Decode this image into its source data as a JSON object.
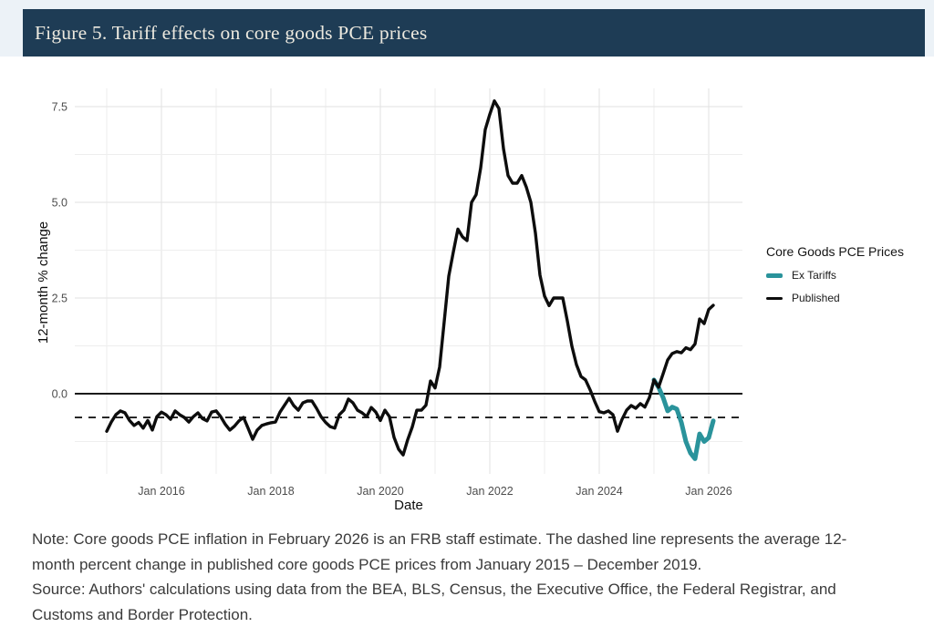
{
  "header": {
    "title": "Figure 5. Tariff effects on core goods PCE prices",
    "background_color": "#1e3c55",
    "text_color": "#ece9df"
  },
  "chart_data": {
    "type": "line",
    "xlabel": "Date",
    "ylabel": "12-month % change",
    "x_range": [
      "Jan 2015",
      "Feb 2026"
    ],
    "ylim": [
      -2.1,
      8.0
    ],
    "grid": true,
    "x_ticks": [
      {
        "label": "Jan 2016",
        "month_index": 12
      },
      {
        "label": "Jan 2018",
        "month_index": 36
      },
      {
        "label": "Jan 2020",
        "month_index": 60
      },
      {
        "label": "Jan 2022",
        "month_index": 84
      },
      {
        "label": "Jan 2024",
        "month_index": 108
      },
      {
        "label": "Jan 2026",
        "month_index": 132
      }
    ],
    "y_ticks": [
      {
        "label": "0.0",
        "value": 0
      },
      {
        "label": "2.5",
        "value": 2.5
      },
      {
        "label": "5.0",
        "value": 5
      },
      {
        "label": "7.5",
        "value": 7.5
      }
    ],
    "y_grid_minor": [
      -1.25,
      1.25,
      3.75,
      6.25
    ],
    "y_grid_major": [
      0,
      2.5,
      5,
      7.5
    ],
    "reference_lines": {
      "zero_line": 0.0,
      "dashed_line_value": -0.62,
      "dashed_line_meaning": "average 12-month percent change in published core goods PCE prices, January 2015 - December 2019"
    },
    "legend": {
      "title": "Core Goods PCE Prices",
      "position": "right",
      "entries": [
        {
          "label": "Ex Tariffs",
          "color": "#2a939b"
        },
        {
          "label": "Published",
          "color": "#0d0d0d"
        }
      ]
    },
    "series": [
      {
        "name": "Ex Tariffs",
        "color": "#2a939b",
        "frequency": "monthly",
        "start_date": "2025-01",
        "start_index": 120,
        "values": [
          0.36,
          0.17,
          -0.1,
          -0.45,
          -0.35,
          -0.4,
          -0.75,
          -1.25,
          -1.55,
          -1.7,
          -1.05,
          -1.25,
          -1.15,
          -0.71
        ]
      },
      {
        "name": "Published",
        "color": "#0d0d0d",
        "frequency": "monthly",
        "start_date": "2015-01",
        "start_index": 0,
        "values": [
          -0.98,
          -0.74,
          -0.55,
          -0.45,
          -0.5,
          -0.7,
          -0.83,
          -0.75,
          -0.9,
          -0.7,
          -0.95,
          -0.6,
          -0.48,
          -0.55,
          -0.67,
          -0.45,
          -0.55,
          -0.62,
          -0.74,
          -0.6,
          -0.5,
          -0.65,
          -0.71,
          -0.48,
          -0.45,
          -0.6,
          -0.8,
          -0.95,
          -0.85,
          -0.71,
          -0.62,
          -0.9,
          -1.19,
          -0.95,
          -0.83,
          -0.79,
          -0.76,
          -0.74,
          -0.48,
          -0.3,
          -0.12,
          -0.31,
          -0.43,
          -0.24,
          -0.19,
          -0.19,
          -0.38,
          -0.6,
          -0.75,
          -0.86,
          -0.9,
          -0.55,
          -0.43,
          -0.14,
          -0.24,
          -0.43,
          -0.5,
          -0.6,
          -0.36,
          -0.48,
          -0.7,
          -0.43,
          -0.6,
          -1.14,
          -1.45,
          -1.6,
          -1.2,
          -0.87,
          -0.43,
          -0.43,
          -0.3,
          0.33,
          0.15,
          0.7,
          1.88,
          3.07,
          3.7,
          4.3,
          4.1,
          4.0,
          5.0,
          5.2,
          5.9,
          6.9,
          7.3,
          7.65,
          7.45,
          6.4,
          5.7,
          5.5,
          5.5,
          5.7,
          5.4,
          5.0,
          4.2,
          3.1,
          2.55,
          2.3,
          2.5,
          2.5,
          2.5,
          1.9,
          1.24,
          0.76,
          0.45,
          0.36,
          0.1,
          -0.2,
          -0.47,
          -0.5,
          -0.45,
          -0.55,
          -0.98,
          -0.67,
          -0.43,
          -0.31,
          -0.38,
          -0.26,
          -0.35,
          -0.1,
          0.36,
          0.17,
          0.52,
          0.88,
          1.05,
          1.1,
          1.07,
          1.2,
          1.15,
          1.3,
          1.95,
          1.83,
          2.2,
          2.31
        ]
      }
    ]
  },
  "notes": {
    "note": "Note: Core goods PCE inflation in February 2026 is an FRB staff estimate. The dashed line represents the average 12-month percent change in published core goods PCE prices from January 2015 – December 2019.",
    "source": "Source: Authors' calculations using data from the BEA, BLS, Census, the Executive Office, the Federal Registrar, and Customs and Border Protection."
  }
}
